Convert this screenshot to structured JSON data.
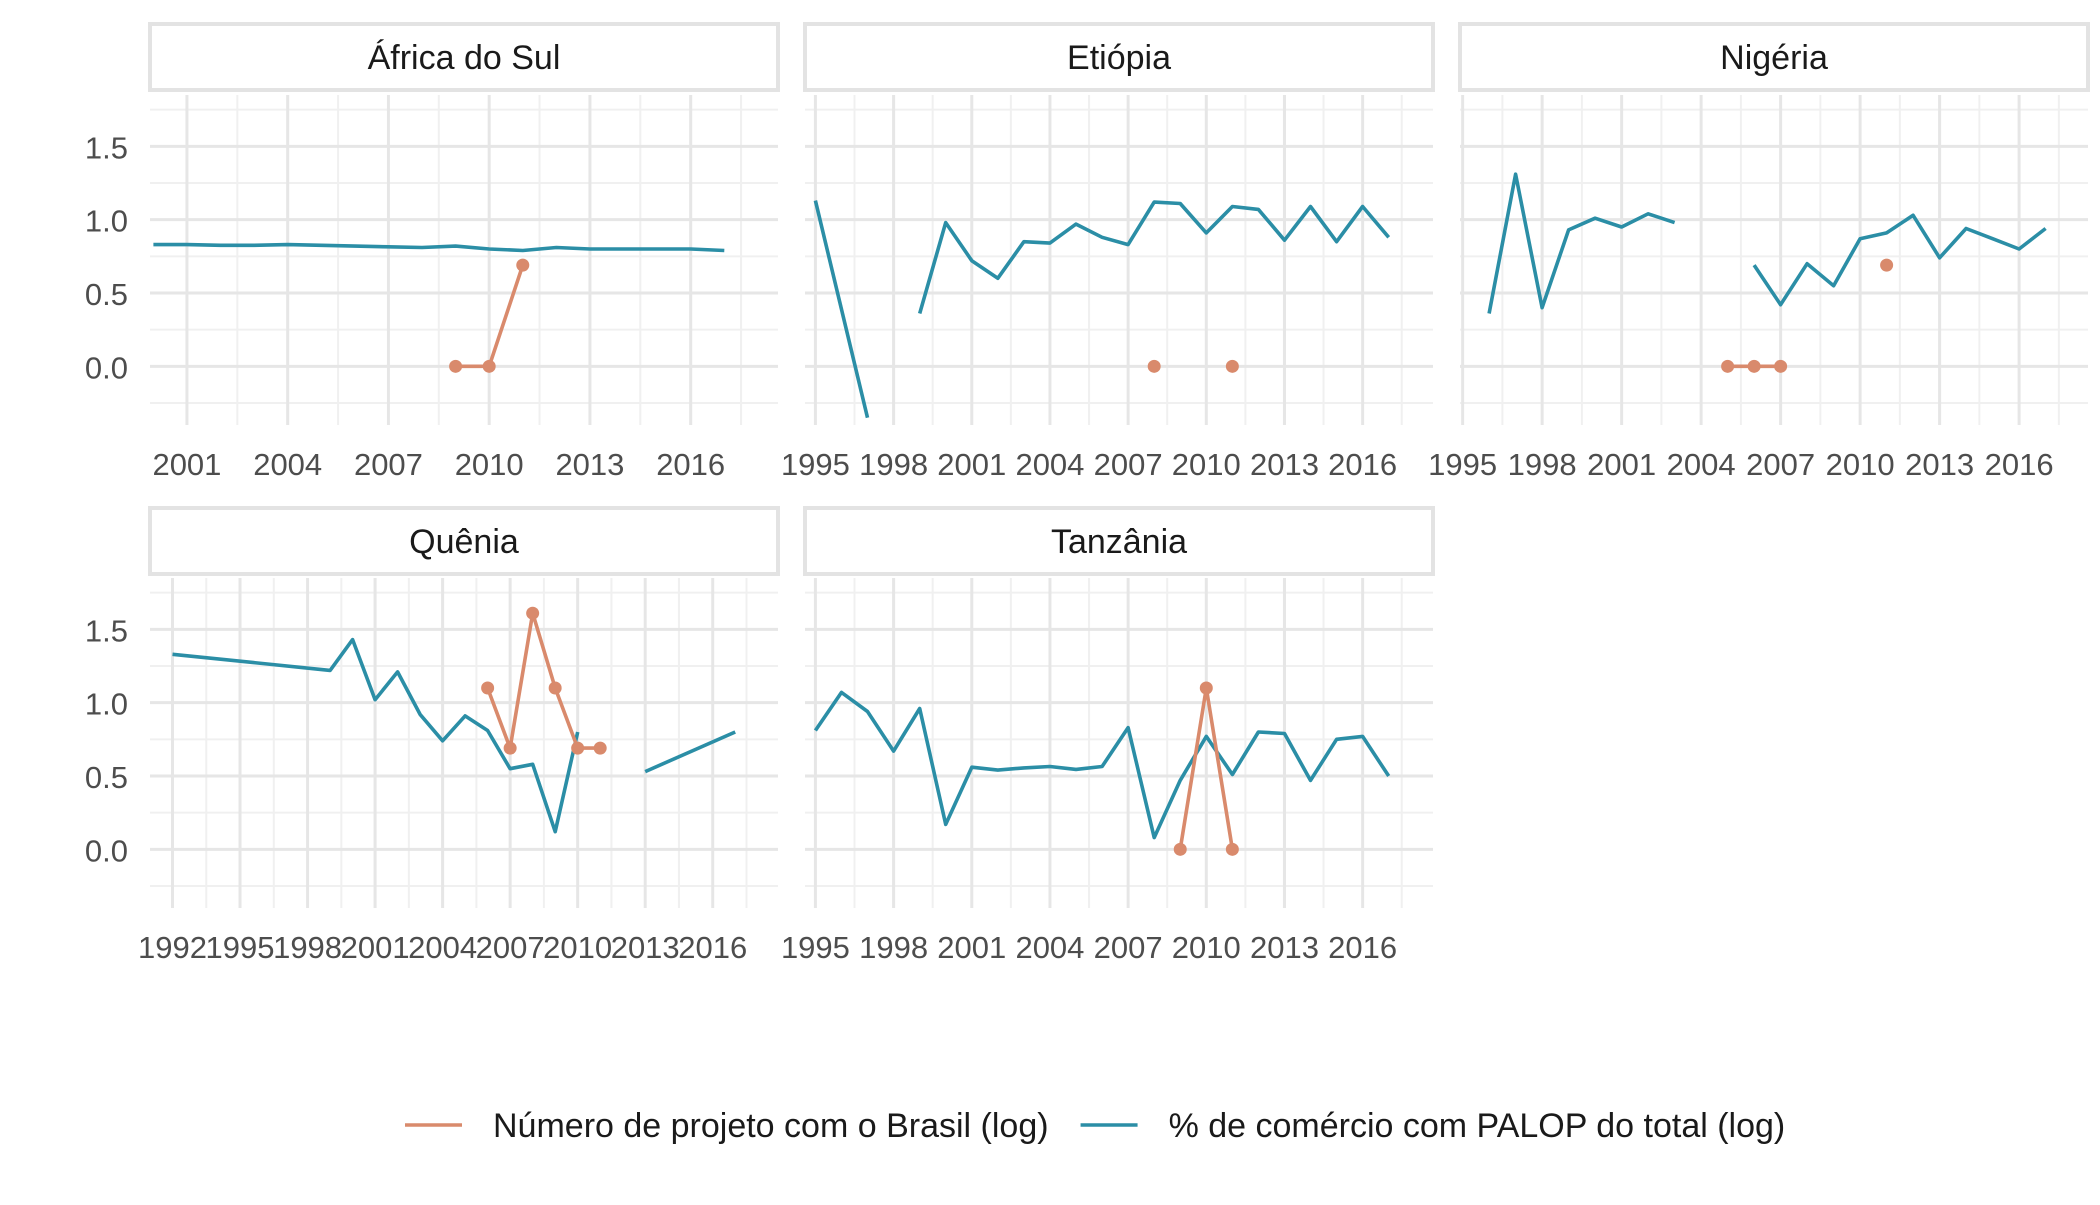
{
  "chart_data": {
    "type": "line",
    "facet_layout": "2 rows x 3 columns",
    "y_ticks": [
      0.0,
      0.5,
      1.0,
      1.5
    ],
    "y_tick_labels": [
      "0.0",
      "0.5",
      "1.0",
      "1.5"
    ],
    "ylim": [
      -0.4,
      1.85
    ],
    "grid": true,
    "legend_position": "bottom",
    "legend": [
      {
        "key": "projects",
        "label": "Número de projeto com o Brasil (log)",
        "color": "#D98A6C"
      },
      {
        "key": "trade",
        "label": "% de comércio com PALOP do total (log)",
        "color": "#2B8EA6"
      }
    ],
    "facets": [
      {
        "title": "África do Sul",
        "xlim": [
          1999.9,
          2018.6
        ],
        "x_ticks": [
          2001,
          2004,
          2007,
          2010,
          2013,
          2016
        ],
        "trade": [
          [
            [
              2000,
              0.83
            ],
            [
              2001,
              0.83
            ],
            [
              2002,
              0.825
            ],
            [
              2003,
              0.825
            ],
            [
              2004,
              0.83
            ],
            [
              2005,
              0.825
            ],
            [
              2006,
              0.82
            ],
            [
              2007,
              0.815
            ],
            [
              2008,
              0.81
            ],
            [
              2009,
              0.82
            ],
            [
              2010,
              0.8
            ],
            [
              2011,
              0.79
            ],
            [
              2012,
              0.81
            ],
            [
              2013,
              0.8
            ],
            [
              2014,
              0.8
            ],
            [
              2015,
              0.8
            ],
            [
              2016,
              0.8
            ],
            [
              2017,
              0.79
            ]
          ]
        ],
        "projects": [
          [
            [
              2009,
              0.0
            ],
            [
              2010,
              0.0
            ],
            [
              2011,
              0.69
            ]
          ]
        ]
      },
      {
        "title": "Etiópia",
        "xlim": [
          1994.6,
          2018.7
        ],
        "x_ticks": [
          1995,
          1998,
          2001,
          2004,
          2007,
          2010,
          2013,
          2016
        ],
        "trade": [
          [
            [
              1995,
              1.13
            ],
            [
              1997,
              -0.35
            ]
          ],
          [
            [
              1999,
              0.36
            ],
            [
              2000,
              0.98
            ],
            [
              2001,
              0.72
            ],
            [
              2002,
              0.6
            ],
            [
              2003,
              0.85
            ],
            [
              2004,
              0.84
            ],
            [
              2005,
              0.97
            ],
            [
              2006,
              0.88
            ],
            [
              2007,
              0.83
            ],
            [
              2008,
              1.12
            ],
            [
              2009,
              1.11
            ],
            [
              2010,
              0.91
            ],
            [
              2011,
              1.09
            ],
            [
              2012,
              1.07
            ],
            [
              2013,
              0.86
            ],
            [
              2014,
              1.09
            ],
            [
              2015,
              0.85
            ],
            [
              2016,
              1.09
            ],
            [
              2017,
              0.88
            ]
          ]
        ],
        "projects": [
          [
            [
              2008,
              0.0
            ]
          ],
          [
            [
              2011,
              0.0
            ]
          ]
        ]
      },
      {
        "title": "Nigéria",
        "xlim": [
          1994.9,
          2018.6
        ],
        "x_ticks": [
          1995,
          1998,
          2001,
          2004,
          2007,
          2010,
          2013,
          2016
        ],
        "trade": [
          [
            [
              1996,
              0.36
            ],
            [
              1997,
              1.31
            ],
            [
              1998,
              0.4
            ],
            [
              1999,
              0.93
            ],
            [
              2000,
              1.01
            ],
            [
              2001,
              0.95
            ],
            [
              2002,
              1.04
            ],
            [
              2003,
              0.98
            ]
          ],
          [
            [
              2006,
              0.69
            ],
            [
              2007,
              0.42
            ],
            [
              2008,
              0.7
            ],
            [
              2009,
              0.55
            ],
            [
              2010,
              0.87
            ],
            [
              2011,
              0.91
            ],
            [
              2012,
              1.03
            ],
            [
              2013,
              0.74
            ],
            [
              2014,
              0.94
            ],
            [
              2015,
              0.87
            ],
            [
              2016,
              0.8
            ],
            [
              2017,
              0.94
            ]
          ]
        ],
        "projects": [
          [
            [
              2005,
              0.0
            ],
            [
              2006,
              0.0
            ],
            [
              2007,
              0.0
            ]
          ],
          [
            [
              2011,
              0.69
            ]
          ]
        ]
      },
      {
        "title": "Quênia",
        "xlim": [
          1991.0,
          2018.9
        ],
        "x_ticks": [
          1992,
          1995,
          1998,
          2001,
          2004,
          2007,
          2010,
          2013,
          2016
        ],
        "trade": [
          [
            [
              1992,
              1.33
            ],
            [
              1999,
              1.22
            ],
            [
              2000,
              1.43
            ],
            [
              2001,
              1.02
            ],
            [
              2002,
              1.21
            ],
            [
              2003,
              0.92
            ],
            [
              2004,
              0.74
            ],
            [
              2005,
              0.91
            ],
            [
              2006,
              0.81
            ],
            [
              2007,
              0.55
            ],
            [
              2008,
              0.58
            ],
            [
              2009,
              0.12
            ],
            [
              2010,
              0.8
            ]
          ],
          [
            [
              2013,
              0.53
            ],
            [
              2017,
              0.8
            ]
          ]
        ],
        "projects": [
          [
            [
              2006,
              1.1
            ],
            [
              2007,
              0.69
            ],
            [
              2008,
              1.61
            ],
            [
              2009,
              1.1
            ],
            [
              2010,
              0.69
            ],
            [
              2011,
              0.69
            ]
          ]
        ]
      },
      {
        "title": "Tanzânia",
        "xlim": [
          1994.6,
          2018.7
        ],
        "x_ticks": [
          1995,
          1998,
          2001,
          2004,
          2007,
          2010,
          2013,
          2016
        ],
        "trade": [
          [
            [
              1995,
              0.81
            ],
            [
              1996,
              1.07
            ],
            [
              1997,
              0.94
            ],
            [
              1998,
              0.67
            ],
            [
              1999,
              0.96
            ],
            [
              2000,
              0.17
            ],
            [
              2001,
              0.56
            ],
            [
              2002,
              0.54
            ],
            [
              2003,
              0.555
            ],
            [
              2004,
              0.565
            ],
            [
              2005,
              0.545
            ],
            [
              2006,
              0.565
            ],
            [
              2007,
              0.83
            ],
            [
              2008,
              0.08
            ],
            [
              2009,
              0.47
            ],
            [
              2010,
              0.77
            ],
            [
              2011,
              0.51
            ],
            [
              2012,
              0.8
            ],
            [
              2013,
              0.79
            ],
            [
              2014,
              0.47
            ],
            [
              2015,
              0.75
            ],
            [
              2016,
              0.77
            ],
            [
              2017,
              0.5
            ]
          ]
        ],
        "projects": [
          [
            [
              2009,
              0.0
            ],
            [
              2010,
              1.1
            ],
            [
              2011,
              0.0
            ]
          ]
        ]
      }
    ]
  }
}
